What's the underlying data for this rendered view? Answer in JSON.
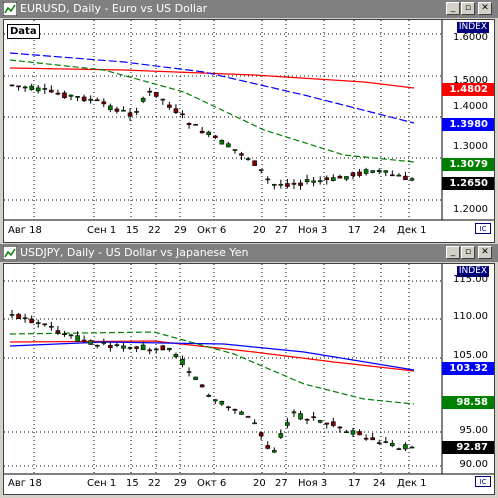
{
  "windows": [
    {
      "title": "EURUSD, Daily - Euro vs US Dollar",
      "data_label": "Data",
      "index_label": "INDEX",
      "y_ticks": [
        "1.6000",
        "1.5000",
        "1.4000",
        "1.3000",
        "1.2000"
      ],
      "price_tags": [
        {
          "label": "1.4802",
          "bg": "#ff0000",
          "fg": "#ffffff"
        },
        {
          "label": "1.3980",
          "bg": "#0000ff",
          "fg": "#ffffff"
        },
        {
          "label": "1.3079",
          "bg": "#008000",
          "fg": "#ffffff"
        },
        {
          "label": "1.2650",
          "bg": "#000000",
          "fg": "#ffffff"
        }
      ],
      "x_ticks": [
        "Авг 18",
        "Сен 1",
        "15",
        "22",
        "29",
        "Окт 6",
        "20",
        "27",
        "Ноя 3",
        "17",
        "24",
        "Дек 1"
      ]
    },
    {
      "title": "USDJPY, Daily - US Dollar vs Japanese Yen",
      "data_label": "Data",
      "index_label": "INDEX",
      "y_ticks": [
        "115.00",
        "110.00",
        "105.00",
        "95.00",
        "90.00"
      ],
      "price_tags": [
        {
          "label": "103.32",
          "bg": "#0000ff",
          "fg": "#ffffff"
        },
        {
          "label": "98.58",
          "bg": "#008000",
          "fg": "#ffffff"
        },
        {
          "label": "92.87",
          "bg": "#000000",
          "fg": "#ffffff"
        }
      ],
      "x_ticks": [
        "Авг 18",
        "Сен 1",
        "15",
        "22",
        "29",
        "Окт 6",
        "20",
        "27",
        "Ноя 3",
        "17",
        "24",
        "Дек 1"
      ]
    }
  ],
  "colors": {
    "ma_red": "#ff0000",
    "ma_blue": "#0000ff",
    "ma_green": "#008000",
    "candle_up": "#008000",
    "candle_down": "#800000",
    "grid": "#000000"
  }
}
